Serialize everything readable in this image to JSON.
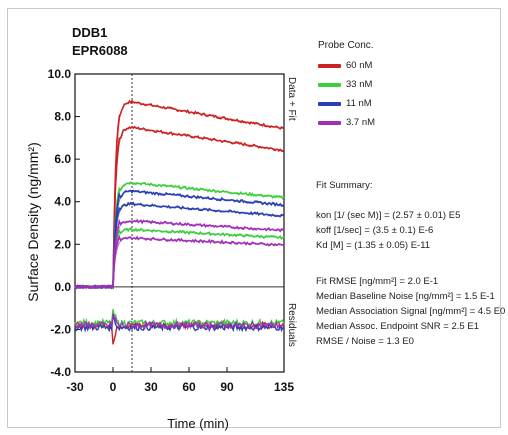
{
  "chart_data": {
    "type": "line",
    "title_line1": "DDB1",
    "title_line2": "EPR6088",
    "xlabel": "Time (min)",
    "ylabel": "Surface Density (ng/mm²)",
    "right_label_top": "Data + Fit",
    "right_label_bottom": "Residuals",
    "xlim": [
      -30,
      135
    ],
    "ylim": [
      -4.0,
      10.0
    ],
    "x_ticks": [
      -30,
      0,
      30,
      60,
      90,
      135
    ],
    "x_tick_labels": [
      "-30",
      "0",
      "30",
      "60",
      "90",
      "135"
    ],
    "y_ticks": [
      10.0,
      8.0,
      6.0,
      4.0,
      2.0,
      0.0,
      -2.0,
      -4.0
    ],
    "y_tick_labels": [
      "10.0",
      "8.0",
      "6.0",
      "4.0",
      "2.0",
      "0.0",
      "-2.0",
      "-4.0"
    ],
    "injection_end_x": 15,
    "legend_title": "Probe Conc.",
    "series": [
      {
        "name": "60 nM",
        "color": "#cc2222",
        "plateaus": [
          8.7,
          7.5
        ],
        "residual": -1.8
      },
      {
        "name": "33 nM",
        "color": "#3ccf3c",
        "plateaus": [
          4.9,
          2.7
        ],
        "residual": -1.7
      },
      {
        "name": "11 nM",
        "color": "#2a3fb0",
        "plateaus": [
          4.5,
          3.9
        ],
        "residual": -1.9
      },
      {
        "name": "3.7 nM",
        "color": "#a030b8",
        "plateaus": [
          3.1,
          2.3
        ],
        "residual": -1.8
      }
    ]
  },
  "fit_summary": {
    "title": "Fit Summary:",
    "lines": [
      "kon  [1/ (sec M)]  =  (2.57 ± 0.01) E5",
      "koff  [1/sec]  =  (3.5 ± 0.1) E-6",
      "Kd  [M]  =  (1.35 ± 0.05) E-11"
    ],
    "stats": [
      "Fit RMSE [ng/mm²]  =  2.0 E-1",
      "Median Baseline Noise [ng/mm²]  =  1.5 E-1",
      "Median Association Signal [ng/mm²]  =  4.5 E0",
      "Median Assoc. Endpoint SNR  =  2.5 E1",
      "RMSE / Noise  =  1.3 E0"
    ]
  }
}
